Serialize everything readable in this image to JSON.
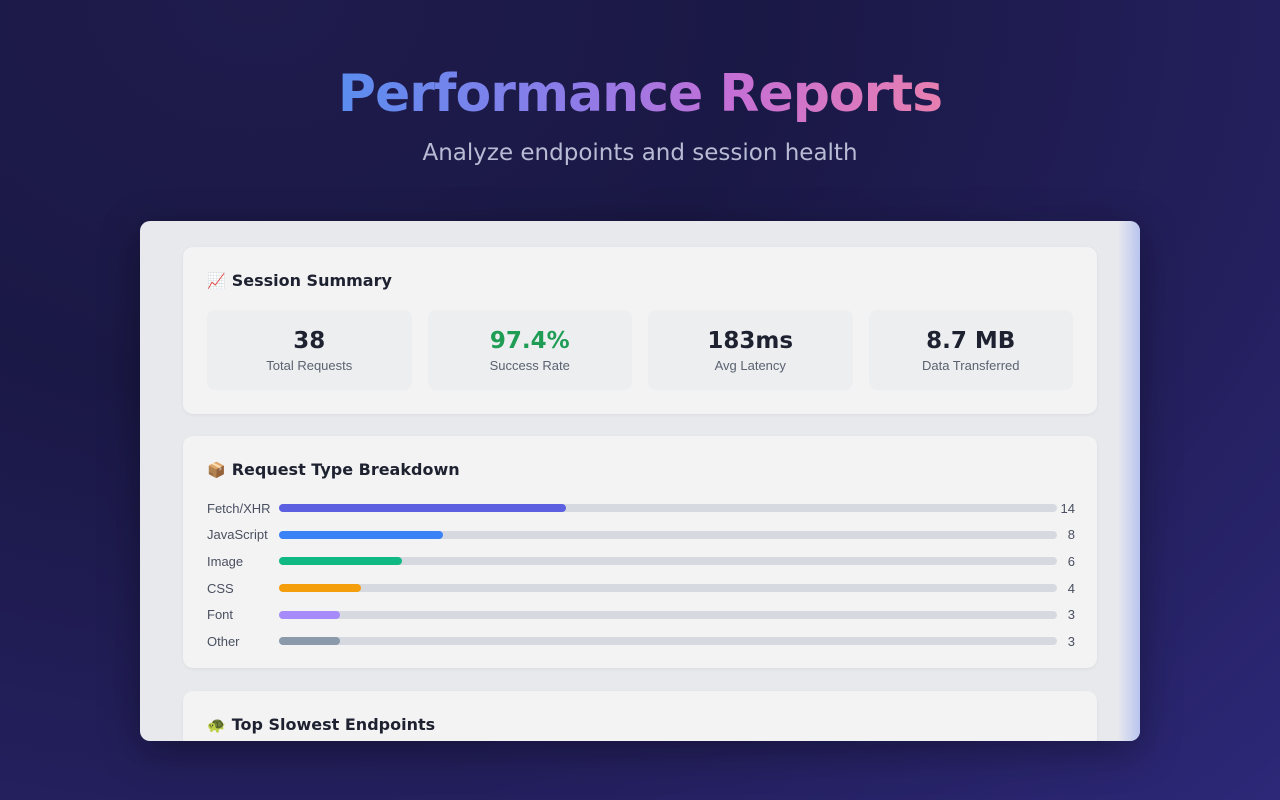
{
  "hero": {
    "title": "Performance Reports",
    "subtitle": "Analyze endpoints and session health"
  },
  "summary": {
    "icon": "chart-increasing-icon",
    "title": "Session Summary",
    "stats": [
      {
        "value": "38",
        "label": "Total Requests"
      },
      {
        "value": "97.4%",
        "label": "Success Rate",
        "accent": "#1f9d55"
      },
      {
        "value": "183ms",
        "label": "Avg Latency"
      },
      {
        "value": "8.7 MB",
        "label": "Data Transferred"
      }
    ]
  },
  "breakdown": {
    "icon": "package-icon",
    "title": "Request Type Breakdown",
    "max": 38,
    "items": [
      {
        "label": "Fetch/XHR",
        "count": "14",
        "value": 14,
        "color": "#5b5fe0"
      },
      {
        "label": "JavaScript",
        "count": "8",
        "value": 8,
        "color": "#3b82f6"
      },
      {
        "label": "Image",
        "count": "6",
        "value": 6,
        "color": "#10b981"
      },
      {
        "label": "CSS",
        "count": "4",
        "value": 4,
        "color": "#f59e0b"
      },
      {
        "label": "Font",
        "count": "3",
        "value": 3,
        "color": "#a78bfa"
      },
      {
        "label": "Other",
        "count": "3",
        "value": 3,
        "color": "#8a9aab"
      }
    ]
  },
  "slowest": {
    "icon": "turtle-icon",
    "title": "Top Slowest Endpoints"
  }
}
